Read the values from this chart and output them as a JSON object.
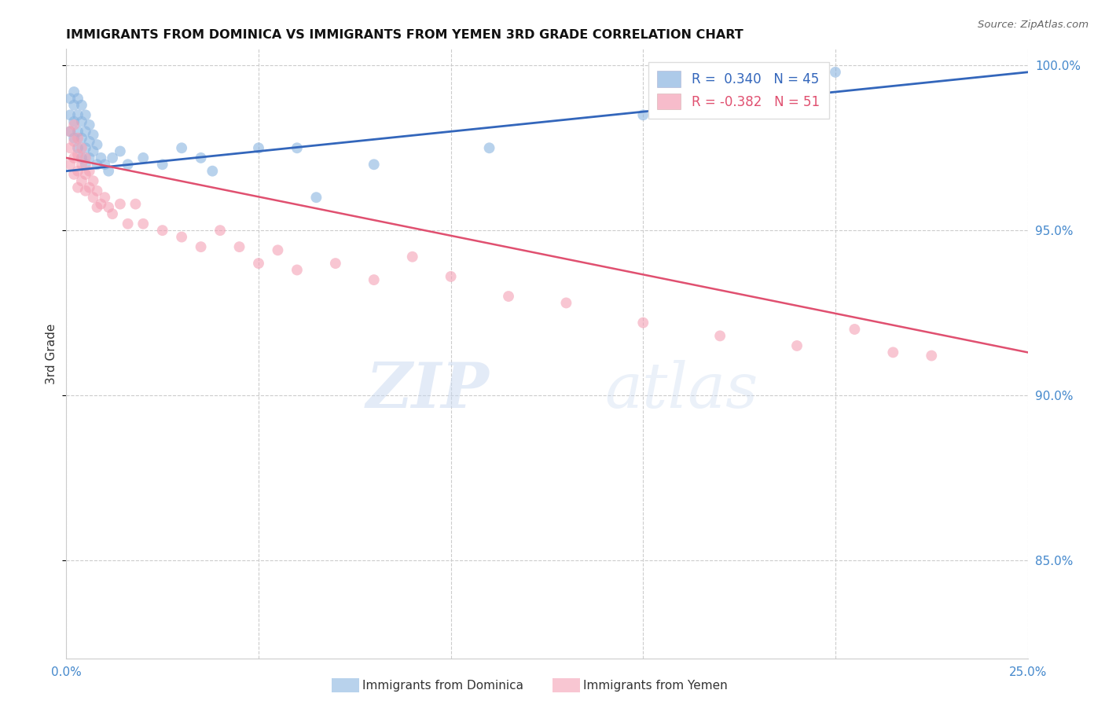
{
  "title": "IMMIGRANTS FROM DOMINICA VS IMMIGRANTS FROM YEMEN 3RD GRADE CORRELATION CHART",
  "source": "Source: ZipAtlas.com",
  "ylabel": "3rd Grade",
  "xlim": [
    0.0,
    0.25
  ],
  "ylim": [
    0.82,
    1.005
  ],
  "yticks": [
    0.85,
    0.9,
    0.95,
    1.0
  ],
  "ytick_labels": [
    "85.0%",
    "90.0%",
    "95.0%",
    "100.0%"
  ],
  "xticks": [
    0.0,
    0.05,
    0.1,
    0.15,
    0.2,
    0.25
  ],
  "xtick_labels": [
    "0.0%",
    "",
    "",
    "",
    "",
    "25.0%"
  ],
  "dominica_color": "#8ab4e0",
  "yemen_color": "#f4a0b5",
  "dominica_line_color": "#3366bb",
  "yemen_line_color": "#e05070",
  "legend_r_dominica": "0.340",
  "legend_n_dominica": "45",
  "legend_r_yemen": "-0.382",
  "legend_n_yemen": "51",
  "legend_label_dominica": "Immigrants from Dominica",
  "legend_label_yemen": "Immigrants from Yemen",
  "watermark_zip": "ZIP",
  "watermark_atlas": "atlas",
  "background_color": "#ffffff",
  "grid_color": "#cccccc",
  "tick_color": "#4488cc",
  "dominica_x": [
    0.001,
    0.001,
    0.001,
    0.002,
    0.002,
    0.002,
    0.002,
    0.003,
    0.003,
    0.003,
    0.003,
    0.004,
    0.004,
    0.004,
    0.004,
    0.005,
    0.005,
    0.005,
    0.005,
    0.006,
    0.006,
    0.006,
    0.007,
    0.007,
    0.008,
    0.008,
    0.009,
    0.01,
    0.011,
    0.012,
    0.014,
    0.016,
    0.02,
    0.025,
    0.03,
    0.035,
    0.038,
    0.05,
    0.06,
    0.065,
    0.08,
    0.11,
    0.15,
    0.18,
    0.2
  ],
  "dominica_y": [
    0.99,
    0.985,
    0.98,
    0.992,
    0.988,
    0.983,
    0.978,
    0.99,
    0.985,
    0.98,
    0.975,
    0.988,
    0.983,
    0.978,
    0.972,
    0.985,
    0.98,
    0.975,
    0.97,
    0.982,
    0.977,
    0.972,
    0.979,
    0.974,
    0.976,
    0.97,
    0.972,
    0.97,
    0.968,
    0.972,
    0.974,
    0.97,
    0.972,
    0.97,
    0.975,
    0.972,
    0.968,
    0.975,
    0.975,
    0.96,
    0.97,
    0.975,
    0.985,
    0.99,
    0.998
  ],
  "yemen_x": [
    0.001,
    0.001,
    0.001,
    0.002,
    0.002,
    0.002,
    0.002,
    0.003,
    0.003,
    0.003,
    0.003,
    0.004,
    0.004,
    0.004,
    0.005,
    0.005,
    0.005,
    0.006,
    0.006,
    0.007,
    0.007,
    0.008,
    0.008,
    0.009,
    0.01,
    0.011,
    0.012,
    0.014,
    0.016,
    0.018,
    0.02,
    0.025,
    0.03,
    0.035,
    0.04,
    0.045,
    0.05,
    0.055,
    0.06,
    0.07,
    0.08,
    0.09,
    0.1,
    0.115,
    0.13,
    0.15,
    0.17,
    0.19,
    0.205,
    0.215,
    0.225
  ],
  "yemen_y": [
    0.98,
    0.975,
    0.97,
    0.982,
    0.977,
    0.972,
    0.967,
    0.978,
    0.973,
    0.968,
    0.963,
    0.975,
    0.97,
    0.965,
    0.972,
    0.967,
    0.962,
    0.968,
    0.963,
    0.965,
    0.96,
    0.962,
    0.957,
    0.958,
    0.96,
    0.957,
    0.955,
    0.958,
    0.952,
    0.958,
    0.952,
    0.95,
    0.948,
    0.945,
    0.95,
    0.945,
    0.94,
    0.944,
    0.938,
    0.94,
    0.935,
    0.942,
    0.936,
    0.93,
    0.928,
    0.922,
    0.918,
    0.915,
    0.92,
    0.913,
    0.912
  ]
}
